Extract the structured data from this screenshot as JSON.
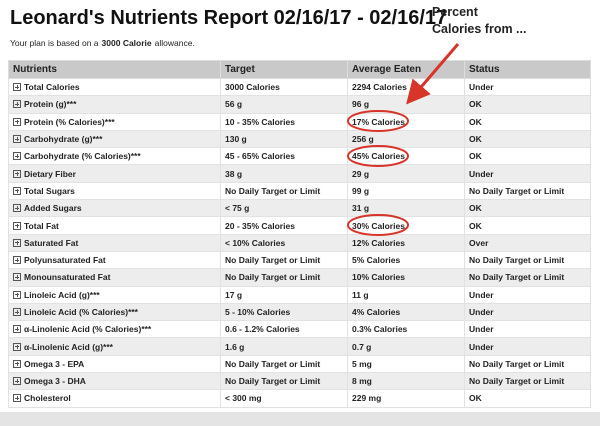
{
  "header": {
    "title": "Leonard's Nutrients Report 02/16/17 - 02/16/17",
    "plan_before": "Your plan is based on a",
    "plan_bold": "3000 Calorie",
    "plan_after": "allowance."
  },
  "annotation": {
    "line1": "Percent",
    "line2": "Calories from ..."
  },
  "table": {
    "columns": [
      "Nutrients",
      "Target",
      "Average Eaten",
      "Status"
    ],
    "rows": [
      [
        "Total Calories",
        "3000 Calories",
        "2294 Calories",
        "Under"
      ],
      [
        "Protein (g)***",
        "56 g",
        "96 g",
        "OK"
      ],
      [
        "Protein (% Calories)***",
        "10 - 35% Calories",
        "17% Calories",
        "OK"
      ],
      [
        "Carbohydrate (g)***",
        "130 g",
        "256 g",
        "OK"
      ],
      [
        "Carbohydrate (% Calories)***",
        "45 - 65% Calories",
        "45% Calories",
        "OK"
      ],
      [
        "Dietary Fiber",
        "38 g",
        "29 g",
        "Under"
      ],
      [
        "Total Sugars",
        "No Daily Target or Limit",
        "99 g",
        "No Daily Target or Limit"
      ],
      [
        "Added Sugars",
        "< 75 g",
        "31 g",
        "OK"
      ],
      [
        "Total Fat",
        "20 - 35% Calories",
        "30% Calories",
        "OK"
      ],
      [
        "Saturated Fat",
        "< 10% Calories",
        "12% Calories",
        "Over"
      ],
      [
        "Polyunsaturated Fat",
        "No Daily Target or Limit",
        "5% Calories",
        "No Daily Target or Limit"
      ],
      [
        "Monounsaturated Fat",
        "No Daily Target or Limit",
        "10% Calories",
        "No Daily Target or Limit"
      ],
      [
        "Linoleic Acid (g)***",
        "17 g",
        "11 g",
        "Under"
      ],
      [
        "Linoleic Acid (% Calories)***",
        "5 - 10% Calories",
        "4% Calories",
        "Under"
      ],
      [
        "α-Linolenic Acid (% Calories)***",
        "0.6 - 1.2% Calories",
        "0.3% Calories",
        "Under"
      ],
      [
        "α-Linolenic Acid (g)***",
        "1.6 g",
        "0.7 g",
        "Under"
      ],
      [
        "Omega 3 - EPA",
        "No Daily Target or Limit",
        "5 mg",
        "No Daily Target or Limit"
      ],
      [
        "Omega 3 - DHA",
        "No Daily Target or Limit",
        "8 mg",
        "No Daily Target or Limit"
      ],
      [
        "Cholesterol",
        "< 300 mg",
        "229 mg",
        "OK"
      ]
    ]
  }
}
